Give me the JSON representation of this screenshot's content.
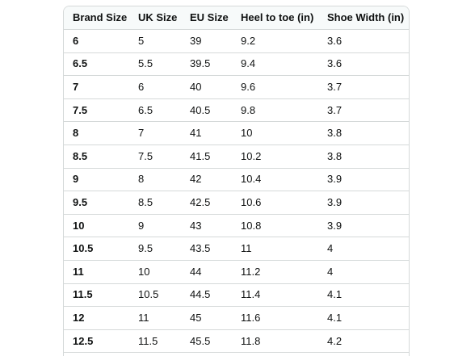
{
  "size_chart": {
    "headers": [
      "Brand Size",
      "UK Size",
      "EU Size",
      "Heel to toe (in)",
      "Shoe Width (in)"
    ],
    "rows": [
      [
        "6",
        "5",
        "39",
        "9.2",
        "3.6"
      ],
      [
        "6.5",
        "5.5",
        "39.5",
        "9.4",
        "3.6"
      ],
      [
        "7",
        "6",
        "40",
        "9.6",
        "3.7"
      ],
      [
        "7.5",
        "6.5",
        "40.5",
        "9.8",
        "3.7"
      ],
      [
        "8",
        "7",
        "41",
        "10",
        "3.8"
      ],
      [
        "8.5",
        "7.5",
        "41.5",
        "10.2",
        "3.8"
      ],
      [
        "9",
        "8",
        "42",
        "10.4",
        "3.9"
      ],
      [
        "9.5",
        "8.5",
        "42.5",
        "10.6",
        "3.9"
      ],
      [
        "10",
        "9",
        "43",
        "10.8",
        "3.9"
      ],
      [
        "10.5",
        "9.5",
        "43.5",
        "11",
        "4"
      ],
      [
        "11",
        "10",
        "44",
        "11.2",
        "4"
      ],
      [
        "11.5",
        "10.5",
        "44.5",
        "11.4",
        "4.1"
      ],
      [
        "12",
        "11",
        "45",
        "11.6",
        "4.1"
      ],
      [
        "12.5",
        "11.5",
        "45.5",
        "11.8",
        "4.2"
      ]
    ]
  }
}
